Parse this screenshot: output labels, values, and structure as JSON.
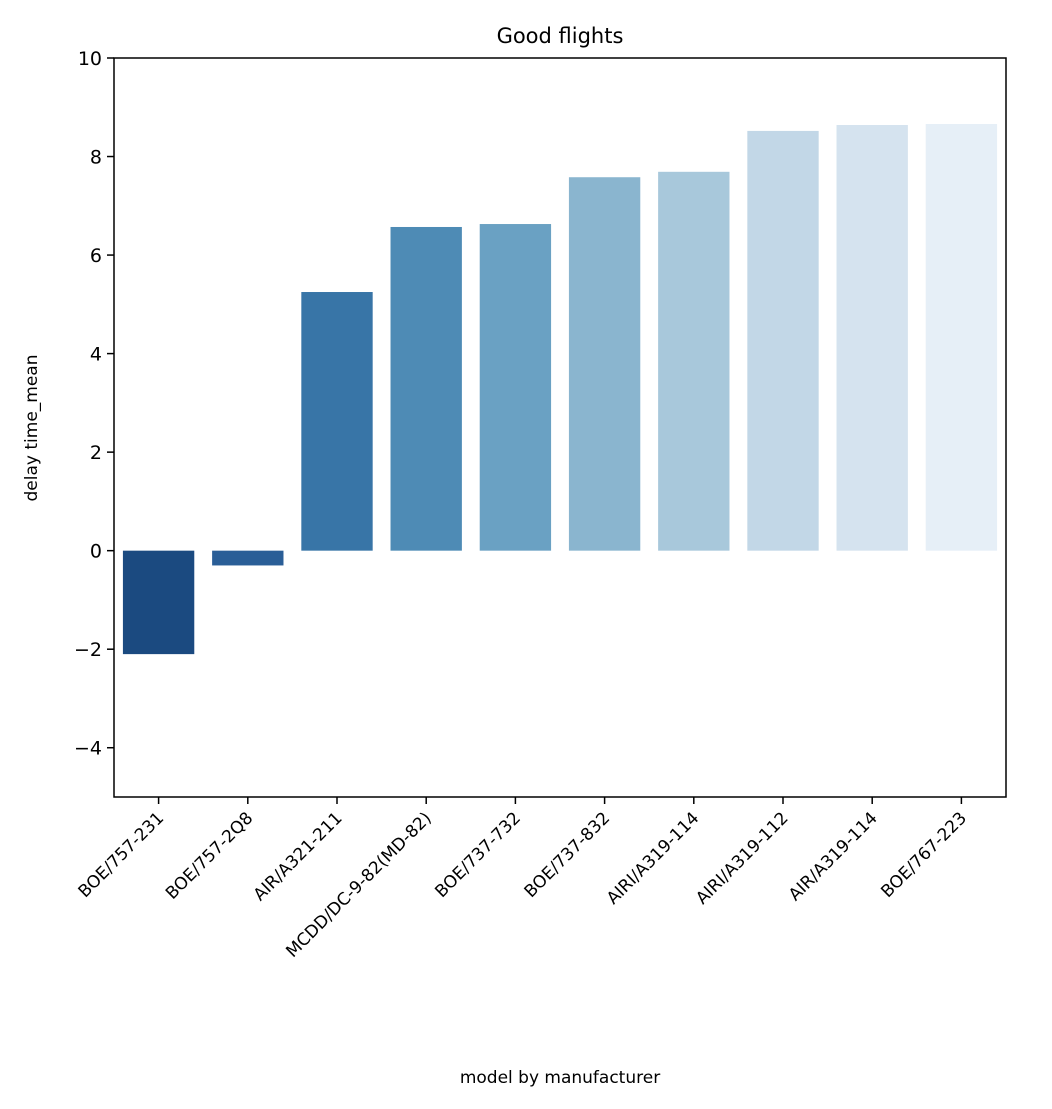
{
  "chart_data": {
    "type": "bar",
    "title": "Good flights",
    "xlabel": "model by manufacturer",
    "ylabel": "delay time_mean",
    "ylim": [
      -5,
      10
    ],
    "yticks": [
      -4,
      -2,
      0,
      2,
      4,
      6,
      8,
      10
    ],
    "categories": [
      "BOE/757-231",
      "BOE/757-2Q8",
      "AIR/A321-211",
      "MCDD/DC-9-82(MD-82)",
      "BOE/737-732",
      "BOE/737-832",
      "AIRI/A319-114",
      "AIRI/A319-112",
      "AIR/A319-114",
      "BOE/767-223"
    ],
    "values": [
      -2.1,
      -0.3,
      5.25,
      6.57,
      6.63,
      7.58,
      7.69,
      8.52,
      8.64,
      8.66
    ],
    "colors": [
      "#1b4a80",
      "#2a5e97",
      "#3875a7",
      "#4e8bb5",
      "#6aa1c3",
      "#8ab5cf",
      "#a8c8db",
      "#c2d7e7",
      "#d5e3ef",
      "#e6eff7"
    ],
    "grid": false,
    "legend": "none"
  }
}
